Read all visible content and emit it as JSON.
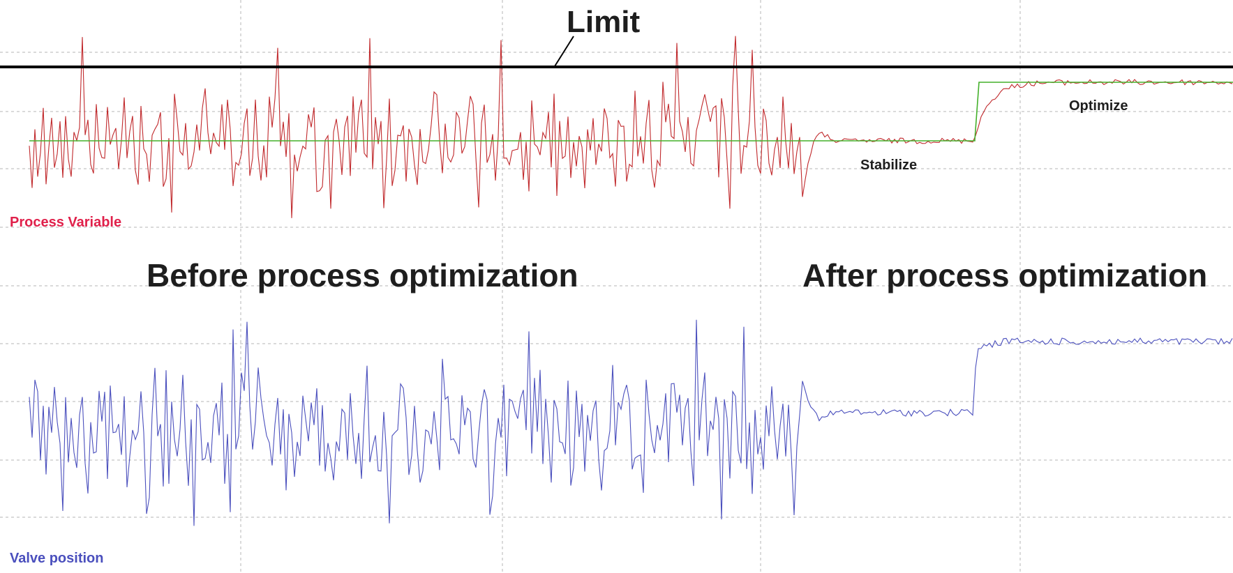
{
  "chart_data": {
    "type": "line",
    "grid": true,
    "colors": {
      "process_variable": "#c0282b",
      "valve_position": "#4a4fbd",
      "setpoint": "#43b02a",
      "limit": "#000000",
      "process_variable_label": "#e0214b"
    },
    "annotations": {
      "limit": "Limit",
      "stabilize": "Stabilize",
      "optimize": "Optimize",
      "before": "Before process optimization",
      "after": "After process optimization"
    },
    "series": [
      {
        "name": "Process Variable",
        "values": []
      },
      {
        "name": "Valve position",
        "values": []
      }
    ]
  }
}
